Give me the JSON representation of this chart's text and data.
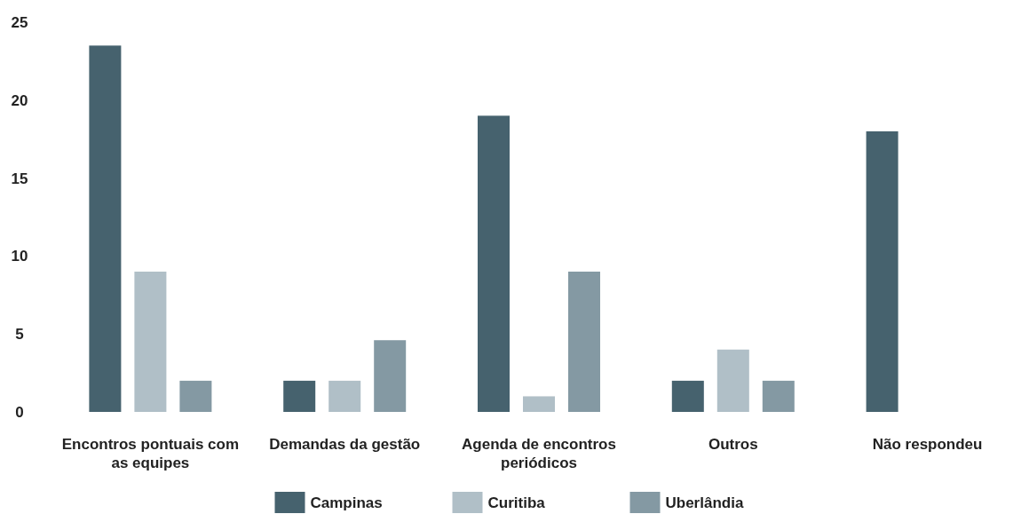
{
  "chart_data": {
    "type": "bar",
    "categories": [
      "Encontros pontuais com as equipes",
      "Demandas da gestão",
      "Agenda de encontros periódicos",
      "Outros",
      "Não respondeu"
    ],
    "series": [
      {
        "name": "Campinas",
        "color": "#46626e",
        "values": [
          23.5,
          2,
          19,
          2,
          18
        ]
      },
      {
        "name": "Curitiba",
        "color": "#b0bfc7",
        "values": [
          9,
          2,
          1,
          4,
          0
        ]
      },
      {
        "name": "Uberlândia",
        "color": "#8499a3",
        "values": [
          2,
          4.6,
          9,
          2,
          0
        ]
      }
    ],
    "ylim": [
      0,
      25
    ],
    "yticks": [
      0,
      5,
      10,
      15,
      20,
      25
    ],
    "grid": false,
    "legend": "bottom"
  }
}
